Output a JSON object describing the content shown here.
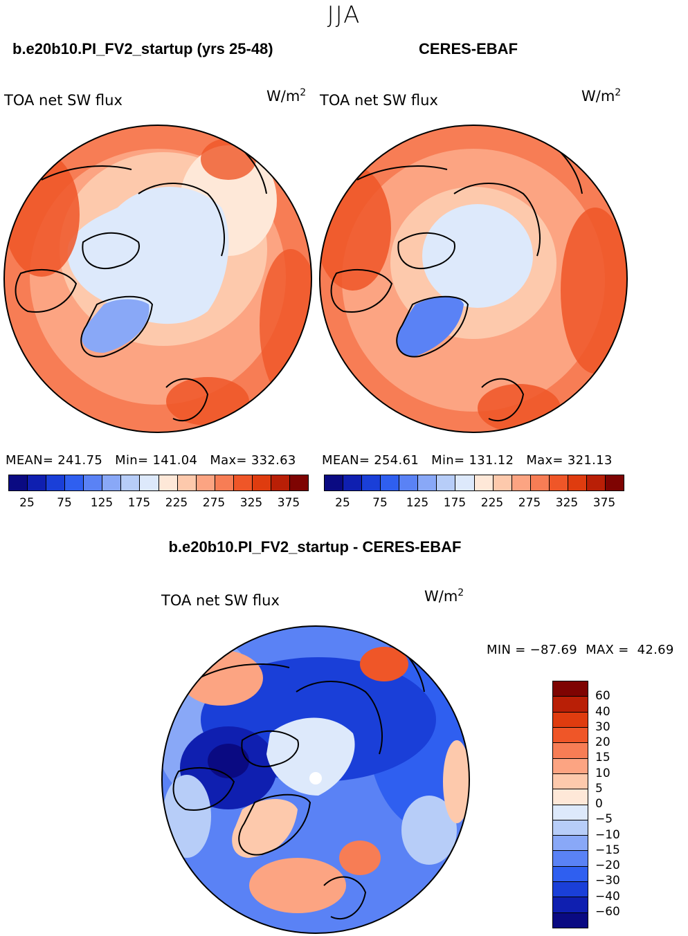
{
  "figure": {
    "season": "JJA",
    "panels": [
      {
        "id": "model",
        "title": "b.e20b10.PI_FV2_startup (yrs 25-48)",
        "variable": "TOA net SW flux",
        "units": "W/m",
        "units_sup": "2",
        "mean_label": "MEAN=",
        "mean": "241.75",
        "min_label": "Min=",
        "min": "141.04",
        "max_label": "Max=",
        "max": "332.63"
      },
      {
        "id": "obs",
        "title": "CERES-EBAF",
        "variable": "TOA net SW flux",
        "units": "W/m",
        "units_sup": "2",
        "mean_label": "MEAN=",
        "mean": "254.61",
        "min_label": "Min=",
        "min": "131.12",
        "max_label": "Max=",
        "max": "321.13"
      }
    ],
    "diff": {
      "title": "b.e20b10.PI_FV2_startup - CERES-EBAF",
      "variable": "TOA net SW flux",
      "units": "W/m",
      "units_sup": "2",
      "min_label": "MIN =",
      "min": "−87.69",
      "max_label": "MAX =",
      "max": "42.69"
    }
  },
  "abs_colorbar": {
    "colors": [
      "#0a0a82",
      "#0f1fb0",
      "#1a3fd8",
      "#2f5ff0",
      "#5a82f5",
      "#89a8f7",
      "#b7cdf8",
      "#dde9fb",
      "#fee8d8",
      "#fdc9ac",
      "#fca482",
      "#f77d55",
      "#ef5628",
      "#df3c0f",
      "#b91f06",
      "#7e0402"
    ],
    "tick_labels": [
      "25",
      "75",
      "125",
      "175",
      "225",
      "275",
      "325",
      "375"
    ]
  },
  "diff_colorbar": {
    "colors_top_to_bottom": [
      "#7e0402",
      "#b91f06",
      "#df3c0f",
      "#ef5628",
      "#f77d55",
      "#fca482",
      "#fdc9ac",
      "#fee8d8",
      "#dde9fb",
      "#b7cdf8",
      "#89a8f7",
      "#5a82f5",
      "#2f5ff0",
      "#1a3fd8",
      "#0f1fb0",
      "#0a0a82"
    ],
    "tick_labels": [
      "60",
      "40",
      "30",
      "20",
      "15",
      "10",
      "5",
      "0",
      "−5",
      "−10",
      "−15",
      "−20",
      "−30",
      "−40",
      "−60"
    ]
  },
  "colors": {
    "land_outline": "#000000",
    "ice_light": "#dde9fb",
    "greenland_blue": "#5a82f5"
  }
}
